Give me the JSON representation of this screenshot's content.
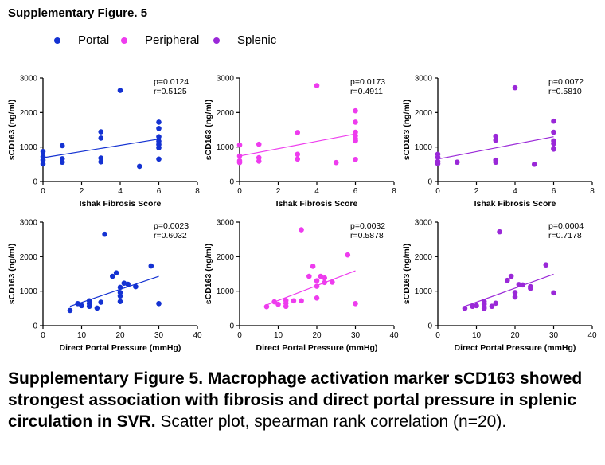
{
  "figure_title": "Supplementary Figure. 5",
  "legend": [
    {
      "label": "Portal",
      "color": "#1432d2"
    },
    {
      "label": "Peripheral",
      "color": "#ee3cee"
    },
    {
      "label": "Splenic",
      "color": "#9a28d8"
    }
  ],
  "caption": {
    "bold": "Supplementary Figure 5. Macrophage activation marker sCD163 showed strongest association with fibrosis and direct portal pressure in splenic circulation in SVR.",
    "normal": " Scatter plot, spearman rank correlation (n=20)."
  },
  "chart_data": [
    {
      "type": "scatter",
      "series": "Portal",
      "color": "#1432d2",
      "xlabel": "Ishak Fibrosis Score",
      "ylabel": "sCD163 (ng/ml)",
      "xlim": [
        0,
        8
      ],
      "ylim": [
        0,
        3000
      ],
      "xticks": [
        0,
        2,
        4,
        6,
        8
      ],
      "yticks": [
        0,
        1000,
        2000,
        3000
      ],
      "stats": [
        "p=0.0124",
        "r=0.5125"
      ],
      "points": [
        [
          0,
          870
        ],
        [
          0,
          720
        ],
        [
          0,
          620
        ],
        [
          0,
          510
        ],
        [
          1,
          1040
        ],
        [
          1,
          660
        ],
        [
          1,
          560
        ],
        [
          3,
          1440
        ],
        [
          3,
          1260
        ],
        [
          3,
          680
        ],
        [
          3,
          570
        ],
        [
          4,
          2640
        ],
        [
          5,
          440
        ],
        [
          6,
          1720
        ],
        [
          6,
          1540
        ],
        [
          6,
          1300
        ],
        [
          6,
          1170
        ],
        [
          6,
          1070
        ],
        [
          6,
          980
        ],
        [
          6,
          650
        ]
      ],
      "fit": [
        [
          0,
          690
        ],
        [
          6,
          1230
        ]
      ]
    },
    {
      "type": "scatter",
      "series": "Peripheral",
      "color": "#ee3cee",
      "xlabel": "Ishak Fibrosis Score",
      "ylabel": "sCD163 (ng/ml)",
      "xlim": [
        0,
        8
      ],
      "ylim": [
        0,
        3000
      ],
      "xticks": [
        0,
        2,
        4,
        6,
        8
      ],
      "yticks": [
        0,
        1000,
        2000,
        3000
      ],
      "stats": [
        "p=0.0173",
        "r=0.4911"
      ],
      "points": [
        [
          0,
          1060
        ],
        [
          0,
          740
        ],
        [
          0,
          600
        ],
        [
          0,
          550
        ],
        [
          1,
          1080
        ],
        [
          1,
          690
        ],
        [
          1,
          590
        ],
        [
          3,
          1420
        ],
        [
          3,
          790
        ],
        [
          3,
          650
        ],
        [
          4,
          2780
        ],
        [
          5,
          550
        ],
        [
          6,
          2050
        ],
        [
          6,
          1720
        ],
        [
          6,
          1430
        ],
        [
          6,
          1330
        ],
        [
          6,
          1240
        ],
        [
          6,
          1190
        ],
        [
          6,
          640
        ],
        [
          6,
          1180
        ]
      ],
      "fit": [
        [
          0,
          740
        ],
        [
          6,
          1380
        ]
      ]
    },
    {
      "type": "scatter",
      "series": "Splenic",
      "color": "#9a28d8",
      "xlabel": "Ishak Fibrosis Score",
      "ylabel": "sCD163 (ng/ml)",
      "xlim": [
        0,
        8
      ],
      "ylim": [
        0,
        3000
      ],
      "xticks": [
        0,
        2,
        4,
        6,
        8
      ],
      "yticks": [
        0,
        1000,
        2000,
        3000
      ],
      "stats": [
        "p=0.0072",
        "r=0.5810"
      ],
      "points": [
        [
          0,
          790
        ],
        [
          0,
          700
        ],
        [
          0,
          580
        ],
        [
          0,
          520
        ],
        [
          1,
          560
        ],
        [
          3,
          1310
        ],
        [
          3,
          1200
        ],
        [
          3,
          620
        ],
        [
          3,
          560
        ],
        [
          4,
          2720
        ],
        [
          5,
          500
        ],
        [
          6,
          1750
        ],
        [
          6,
          1430
        ],
        [
          6,
          1180
        ],
        [
          6,
          1100
        ],
        [
          6,
          960
        ],
        [
          6,
          940
        ]
      ],
      "fit": [
        [
          0,
          650
        ],
        [
          6,
          1300
        ]
      ]
    },
    {
      "type": "scatter",
      "series": "Portal",
      "color": "#1432d2",
      "xlabel": "Direct Portal Pressure (mmHg)",
      "ylabel": "sCD163 (ng/ml)",
      "xlim": [
        0,
        40
      ],
      "ylim": [
        0,
        3000
      ],
      "xticks": [
        0,
        10,
        20,
        30,
        40
      ],
      "yticks": [
        0,
        1000,
        2000,
        3000
      ],
      "stats": [
        "p=0.0023",
        "r=0.6032"
      ],
      "points": [
        [
          7,
          440
        ],
        [
          9,
          640
        ],
        [
          10,
          580
        ],
        [
          12,
          720
        ],
        [
          12,
          640
        ],
        [
          12,
          560
        ],
        [
          14,
          510
        ],
        [
          15,
          680
        ],
        [
          16,
          2650
        ],
        [
          18,
          1430
        ],
        [
          19,
          1530
        ],
        [
          20,
          1110
        ],
        [
          20,
          960
        ],
        [
          20,
          860
        ],
        [
          20,
          700
        ],
        [
          21,
          1230
        ],
        [
          22,
          1200
        ],
        [
          24,
          1130
        ],
        [
          28,
          1730
        ],
        [
          30,
          640
        ]
      ],
      "fit": [
        [
          7,
          560
        ],
        [
          30,
          1430
        ]
      ]
    },
    {
      "type": "scatter",
      "series": "Peripheral",
      "color": "#ee3cee",
      "xlabel": "Direct Portal Pressure (mmHg)",
      "ylabel": "sCD163 (ng/ml)",
      "xlim": [
        0,
        40
      ],
      "ylim": [
        0,
        3000
      ],
      "xticks": [
        0,
        10,
        20,
        30,
        40
      ],
      "yticks": [
        0,
        1000,
        2000,
        3000
      ],
      "stats": [
        "p=0.0032",
        "r=0.5878"
      ],
      "points": [
        [
          7,
          550
        ],
        [
          9,
          690
        ],
        [
          10,
          620
        ],
        [
          12,
          730
        ],
        [
          12,
          650
        ],
        [
          12,
          560
        ],
        [
          14,
          720
        ],
        [
          16,
          2780
        ],
        [
          16,
          720
        ],
        [
          18,
          1430
        ],
        [
          19,
          1720
        ],
        [
          20,
          1300
        ],
        [
          20,
          1140
        ],
        [
          20,
          800
        ],
        [
          21,
          1430
        ],
        [
          22,
          1380
        ],
        [
          22,
          1250
        ],
        [
          24,
          1260
        ],
        [
          28,
          2050
        ],
        [
          30,
          640
        ]
      ],
      "fit": [
        [
          7,
          600
        ],
        [
          30,
          1590
        ]
      ]
    },
    {
      "type": "scatter",
      "series": "Splenic",
      "color": "#9a28d8",
      "xlabel": "Direct Portal Pressure (mmHg)",
      "ylabel": "sCD163 (ng/ml)",
      "xlim": [
        0,
        40
      ],
      "ylim": [
        0,
        3000
      ],
      "xticks": [
        0,
        10,
        20,
        30,
        40
      ],
      "yticks": [
        0,
        1000,
        2000,
        3000
      ],
      "stats": [
        "p=0.0004",
        "r=0.7178"
      ],
      "points": [
        [
          7,
          500
        ],
        [
          9,
          560
        ],
        [
          10,
          580
        ],
        [
          12,
          700
        ],
        [
          12,
          620
        ],
        [
          12,
          540
        ],
        [
          12,
          500
        ],
        [
          14,
          560
        ],
        [
          15,
          650
        ],
        [
          16,
          2720
        ],
        [
          18,
          1310
        ],
        [
          19,
          1430
        ],
        [
          20,
          960
        ],
        [
          20,
          830
        ],
        [
          21,
          1190
        ],
        [
          22,
          1180
        ],
        [
          24,
          1130
        ],
        [
          24,
          1080
        ],
        [
          28,
          1760
        ],
        [
          30,
          950
        ]
      ],
      "fit": [
        [
          7,
          560
        ],
        [
          30,
          1490
        ]
      ]
    }
  ]
}
